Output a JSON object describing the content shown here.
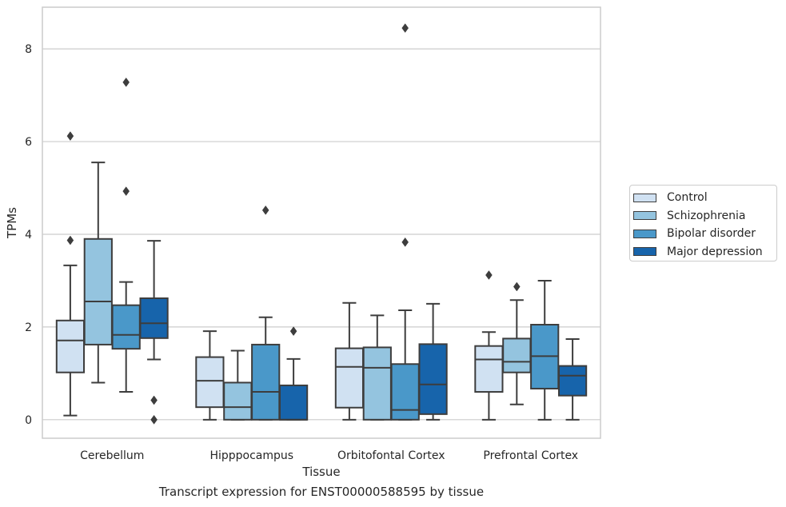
{
  "caption": "Transcript expression for ENST00000588595 by tissue",
  "chart_data": {
    "type": "box",
    "xlabel": "Tissue",
    "ylabel": "TPMs",
    "ylim": [
      -0.4,
      8.9
    ],
    "yticks": [
      0,
      2,
      4,
      6,
      8
    ],
    "categories": [
      "Cerebellum",
      "Hipppocampus",
      "Orbitofontal Cortex",
      "Prefrontal Cortex"
    ],
    "grid": "horizontal",
    "legend_position": "right",
    "colors": [
      "#d0e1f2",
      "#94c4df",
      "#4a98c9",
      "#1764ab"
    ],
    "edge_color": "#3d3d3d",
    "background": "#ffffff",
    "grid_color": "#cccccc",
    "series": [
      {
        "name": "Control",
        "boxes": [
          {
            "whislo": 0.09,
            "q1": 1.02,
            "med": 1.71,
            "q3": 2.14,
            "whishi": 3.33,
            "fliers": [
              3.87,
              6.12
            ]
          },
          {
            "whislo": 0.0,
            "q1": 0.27,
            "med": 0.84,
            "q3": 1.35,
            "whishi": 1.91,
            "fliers": []
          },
          {
            "whislo": 0.0,
            "q1": 0.26,
            "med": 1.14,
            "q3": 1.54,
            "whishi": 2.52,
            "fliers": []
          },
          {
            "whislo": 0.0,
            "q1": 0.6,
            "med": 1.3,
            "q3": 1.59,
            "whishi": 1.89,
            "fliers": [
              3.12
            ]
          }
        ]
      },
      {
        "name": "Schizophrenia",
        "boxes": [
          {
            "whislo": 0.8,
            "q1": 1.62,
            "med": 2.55,
            "q3": 3.9,
            "whishi": 5.55,
            "fliers": []
          },
          {
            "whislo": 0.0,
            "q1": 0.0,
            "med": 0.27,
            "q3": 0.8,
            "whishi": 1.49,
            "fliers": []
          },
          {
            "whislo": 0.0,
            "q1": 0.0,
            "med": 1.12,
            "q3": 1.56,
            "whishi": 2.25,
            "fliers": []
          },
          {
            "whislo": 0.33,
            "q1": 1.02,
            "med": 1.25,
            "q3": 1.75,
            "whishi": 2.58,
            "fliers": [
              2.87
            ]
          }
        ]
      },
      {
        "name": "Bipolar disorder",
        "boxes": [
          {
            "whislo": 0.6,
            "q1": 1.53,
            "med": 1.83,
            "q3": 2.47,
            "whishi": 2.97,
            "fliers": [
              4.93,
              7.28
            ]
          },
          {
            "whislo": 0.0,
            "q1": 0.0,
            "med": 0.6,
            "q3": 1.62,
            "whishi": 2.21,
            "fliers": [
              4.52
            ]
          },
          {
            "whislo": 0.0,
            "q1": 0.0,
            "med": 0.21,
            "q3": 1.2,
            "whishi": 2.36,
            "fliers": [
              3.83,
              8.45
            ]
          },
          {
            "whislo": 0.0,
            "q1": 0.67,
            "med": 1.37,
            "q3": 2.05,
            "whishi": 3.0,
            "fliers": []
          }
        ]
      },
      {
        "name": "Major depression",
        "boxes": [
          {
            "whislo": 1.3,
            "q1": 1.76,
            "med": 2.08,
            "q3": 2.62,
            "whishi": 3.86,
            "fliers": [
              0.42,
              0.0
            ]
          },
          {
            "whislo": 0.0,
            "q1": 0.0,
            "med": 0.0,
            "q3": 0.74,
            "whishi": 1.31,
            "fliers": [
              1.91
            ]
          },
          {
            "whislo": 0.0,
            "q1": 0.12,
            "med": 0.76,
            "q3": 1.63,
            "whishi": 2.5,
            "fliers": []
          },
          {
            "whislo": 0.0,
            "q1": 0.52,
            "med": 0.95,
            "q3": 1.16,
            "whishi": 1.74,
            "fliers": []
          }
        ]
      }
    ]
  }
}
